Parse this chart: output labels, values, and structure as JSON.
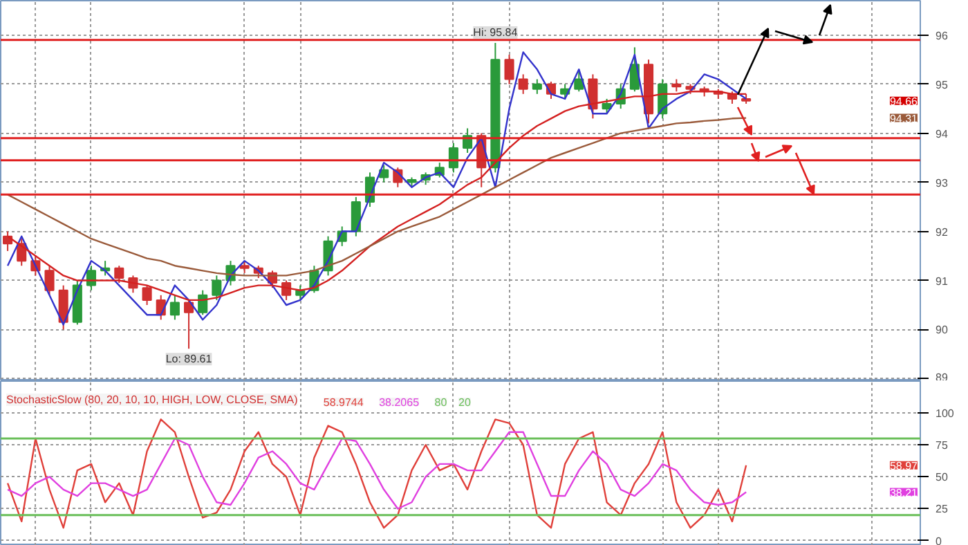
{
  "chart_data": [
    {
      "type": "candlestick",
      "categories": [
        null,
        null,
        null,
        null,
        null,
        null,
        null,
        null,
        null,
        null,
        null,
        null,
        null,
        null,
        null,
        null,
        null,
        null,
        null,
        null,
        null,
        null,
        null,
        null,
        null,
        null,
        null,
        null,
        null,
        null,
        null,
        null,
        null,
        null,
        null,
        null,
        null,
        null,
        null,
        null,
        null,
        null,
        null,
        null,
        null,
        null,
        null,
        null,
        null,
        null,
        null,
        null,
        null,
        null,
        null,
        null,
        null,
        null,
        null,
        null,
        null,
        null,
        null,
        null,
        null,
        null
      ],
      "ohlc": [
        [
          91.9,
          92.0,
          91.6,
          91.75
        ],
        [
          91.75,
          91.85,
          91.3,
          91.4
        ],
        [
          91.4,
          91.5,
          91.1,
          91.2
        ],
        [
          91.2,
          91.3,
          90.7,
          90.8
        ],
        [
          90.8,
          90.9,
          90.0,
          90.15
        ],
        [
          90.15,
          91.0,
          90.1,
          90.9
        ],
        [
          90.9,
          91.3,
          90.8,
          91.2
        ],
        [
          91.2,
          91.4,
          91.1,
          91.25
        ],
        [
          91.25,
          91.3,
          90.95,
          91.05
        ],
        [
          91.05,
          91.1,
          90.75,
          90.85
        ],
        [
          90.85,
          90.9,
          90.5,
          90.6
        ],
        [
          90.6,
          90.7,
          90.2,
          90.3
        ],
        [
          90.3,
          90.7,
          90.2,
          90.55
        ],
        [
          90.55,
          90.6,
          89.61,
          90.35
        ],
        [
          90.35,
          90.8,
          90.3,
          90.7
        ],
        [
          90.7,
          91.1,
          90.6,
          91.0
        ],
        [
          91.0,
          91.4,
          90.9,
          91.3
        ],
        [
          91.3,
          91.4,
          91.15,
          91.25
        ],
        [
          91.25,
          91.3,
          91.05,
          91.15
        ],
        [
          91.15,
          91.2,
          90.85,
          90.95
        ],
        [
          90.95,
          91.0,
          90.6,
          90.7
        ],
        [
          90.7,
          90.9,
          90.6,
          90.8
        ],
        [
          90.8,
          91.3,
          90.75,
          91.2
        ],
        [
          91.2,
          91.9,
          91.1,
          91.8
        ],
        [
          91.8,
          92.1,
          91.7,
          92.0
        ],
        [
          92.0,
          92.7,
          91.9,
          92.6
        ],
        [
          92.6,
          93.2,
          92.5,
          93.1
        ],
        [
          93.1,
          93.35,
          93.0,
          93.25
        ],
        [
          93.25,
          93.3,
          92.9,
          93.0
        ],
        [
          93.0,
          93.1,
          92.9,
          93.05
        ],
        [
          93.05,
          93.2,
          92.95,
          93.15
        ],
        [
          93.15,
          93.4,
          93.1,
          93.3
        ],
        [
          93.3,
          93.8,
          93.2,
          93.7
        ],
        [
          93.7,
          94.1,
          93.6,
          93.95
        ],
        [
          93.95,
          94.0,
          92.9,
          93.3
        ],
        [
          93.3,
          95.84,
          93.2,
          95.5
        ],
        [
          95.5,
          95.6,
          95.0,
          95.1
        ],
        [
          95.1,
          95.2,
          94.8,
          94.9
        ],
        [
          94.9,
          95.1,
          94.8,
          95.0
        ],
        [
          95.0,
          95.05,
          94.7,
          94.8
        ],
        [
          94.8,
          95.0,
          94.7,
          94.9
        ],
        [
          94.9,
          95.3,
          94.85,
          95.1
        ],
        [
          95.1,
          95.2,
          94.3,
          94.5
        ],
        [
          94.5,
          94.7,
          94.4,
          94.6
        ],
        [
          94.6,
          95.0,
          94.5,
          94.9
        ],
        [
          94.9,
          95.75,
          94.85,
          95.4
        ],
        [
          95.4,
          95.5,
          94.2,
          94.4
        ],
        [
          94.4,
          95.1,
          94.3,
          95.0
        ],
        [
          95.0,
          95.1,
          94.85,
          94.95
        ],
        [
          94.95,
          95.0,
          94.8,
          94.9
        ],
        [
          94.9,
          94.95,
          94.75,
          94.85
        ],
        [
          94.85,
          94.9,
          94.7,
          94.8
        ],
        [
          94.8,
          94.85,
          94.6,
          94.7
        ],
        [
          94.7,
          94.8,
          94.6,
          94.66
        ],
        null,
        null,
        null,
        null,
        null,
        null,
        null,
        null,
        null,
        null,
        null,
        null
      ],
      "series": [
        {
          "type": "line",
          "color": "#3333cc",
          "values": [
            91.3,
            91.9,
            91.3,
            90.7,
            90.1,
            90.8,
            91.4,
            91.2,
            90.9,
            90.6,
            90.3,
            90.3,
            90.9,
            90.6,
            90.2,
            90.5,
            91.1,
            91.4,
            91.2,
            90.9,
            90.5,
            90.6,
            90.9,
            91.4,
            92.0,
            92.0,
            92.7,
            93.4,
            93.2,
            92.9,
            93.1,
            93.2,
            92.9,
            93.5,
            93.9,
            92.9,
            94.5,
            95.65,
            95.3,
            94.8,
            94.7,
            95.3,
            94.4,
            94.4,
            94.8,
            95.6,
            94.1,
            94.5,
            94.7,
            94.85,
            95.2,
            95.1,
            94.9,
            94.7,
            null,
            null,
            null,
            null,
            null,
            null,
            null,
            null,
            null,
            null,
            null,
            null
          ]
        },
        {
          "type": "line",
          "color": "#d42020",
          "values": [
            91.9,
            91.7,
            91.5,
            91.3,
            91.1,
            91.0,
            91.0,
            91.0,
            91.0,
            90.95,
            90.9,
            90.8,
            90.7,
            90.6,
            90.6,
            90.65,
            90.75,
            90.85,
            90.9,
            90.9,
            90.85,
            90.8,
            90.85,
            91.0,
            91.2,
            91.45,
            91.7,
            91.9,
            92.1,
            92.25,
            92.4,
            92.55,
            92.75,
            92.95,
            93.1,
            93.4,
            93.7,
            93.95,
            94.15,
            94.3,
            94.45,
            94.55,
            94.6,
            94.65,
            94.7,
            94.75,
            94.75,
            94.8,
            94.8,
            94.85,
            94.85,
            94.85,
            94.8,
            94.8,
            null,
            null,
            null,
            null,
            null,
            null,
            null,
            null,
            null,
            null,
            null,
            null
          ]
        },
        {
          "type": "line",
          "color": "#9a5a3a",
          "values": [
            92.75,
            92.6,
            92.45,
            92.3,
            92.15,
            92.0,
            91.85,
            91.75,
            91.65,
            91.55,
            91.45,
            91.4,
            91.3,
            91.25,
            91.2,
            91.15,
            91.12,
            91.1,
            91.1,
            91.1,
            91.1,
            91.15,
            91.2,
            91.3,
            91.4,
            91.55,
            91.7,
            91.85,
            92.0,
            92.1,
            92.2,
            92.3,
            92.45,
            92.6,
            92.75,
            92.9,
            93.05,
            93.2,
            93.35,
            93.5,
            93.6,
            93.7,
            93.8,
            93.9,
            94.0,
            94.05,
            94.1,
            94.15,
            94.2,
            94.22,
            94.25,
            94.27,
            94.3,
            94.31,
            null,
            null,
            null,
            null,
            null,
            null,
            null,
            null,
            null,
            null,
            null,
            null
          ]
        }
      ],
      "ref_lines": [
        {
          "axis": "y",
          "value": 95.9,
          "color": "#e02020"
        },
        {
          "axis": "y",
          "value": 93.9,
          "color": "#e02020"
        },
        {
          "axis": "y",
          "value": 93.45,
          "color": "#e02020"
        },
        {
          "axis": "y",
          "value": 92.75,
          "color": "#e02020"
        }
      ],
      "annotations": [
        {
          "text": "Hi: 95.84",
          "y": 95.84
        },
        {
          "text": "Lo: 89.61",
          "y": 89.61
        },
        "94.66",
        "94.31"
      ],
      "ylim": [
        88.95,
        96.7
      ],
      "yticks": [
        89,
        90,
        91,
        92,
        93,
        94,
        95,
        96
      ],
      "grid": true,
      "tick_labels": "y"
    },
    {
      "type": "line",
      "title": "StochasticSlow (80, 20, 10, 10, HIGH, LOW, CLOSE, SMA)",
      "categories": [
        null,
        null,
        null,
        null,
        null,
        null,
        null,
        null,
        null,
        null,
        null,
        null,
        null,
        null,
        null,
        null,
        null,
        null,
        null,
        null,
        null,
        null,
        null,
        null,
        null,
        null,
        null,
        null,
        null,
        null,
        null,
        null,
        null,
        null,
        null,
        null,
        null,
        null,
        null,
        null,
        null,
        null,
        null,
        null,
        null,
        null,
        null,
        null,
        null,
        null,
        null,
        null,
        null,
        null,
        null,
        null,
        null,
        null,
        null,
        null,
        null,
        null,
        null,
        null,
        null,
        null
      ],
      "series": [
        {
          "color": "#e0403a",
          "values": [
            45,
            15,
            80,
            40,
            10,
            55,
            60,
            30,
            45,
            20,
            70,
            95,
            85,
            50,
            18,
            22,
            40,
            70,
            85,
            60,
            50,
            20,
            65,
            90,
            85,
            60,
            30,
            10,
            20,
            55,
            75,
            55,
            60,
            40,
            70,
            95,
            92,
            75,
            20,
            10,
            60,
            80,
            85,
            30,
            20,
            45,
            60,
            85,
            30,
            10,
            20,
            40,
            15,
            59,
            null,
            null,
            null,
            null,
            null,
            null,
            null,
            null,
            null,
            null,
            null,
            null
          ]
        },
        {
          "color": "#e040e0",
          "values": [
            40,
            35,
            45,
            50,
            40,
            35,
            45,
            45,
            40,
            35,
            40,
            60,
            80,
            75,
            50,
            30,
            28,
            45,
            65,
            70,
            60,
            45,
            40,
            60,
            80,
            78,
            60,
            40,
            25,
            30,
            50,
            60,
            60,
            55,
            55,
            70,
            85,
            85,
            60,
            35,
            35,
            55,
            70,
            60,
            40,
            35,
            45,
            60,
            55,
            40,
            30,
            28,
            30,
            38,
            null,
            null,
            null,
            null,
            null,
            null,
            null,
            null,
            null,
            null,
            null,
            null
          ]
        }
      ],
      "ref_lines": [
        {
          "axis": "y",
          "value": 80,
          "label": "80",
          "color": "#6abf5a"
        },
        {
          "axis": "y",
          "value": 20,
          "label": "20",
          "color": "#6abf5a"
        }
      ],
      "annotations": [
        "58.9744",
        "38.2065",
        "58.97",
        "38.21"
      ],
      "ylim": [
        -4,
        125
      ],
      "yticks": [
        0,
        25,
        50,
        75,
        100
      ],
      "grid": true,
      "tick_labels": "y"
    }
  ]
}
